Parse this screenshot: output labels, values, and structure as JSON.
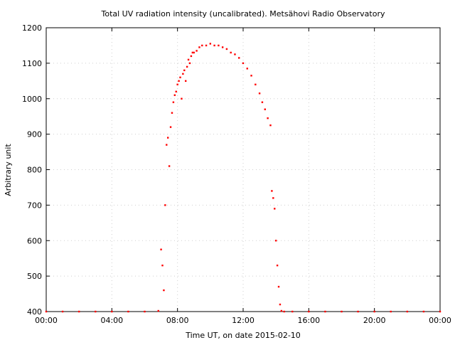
{
  "chart_data": {
    "type": "scatter",
    "title": "Total UV radiation intensity (uncalibrated). Metsähovi Radio Observatory",
    "xlabel": "Time UT, on date 2015-02-10",
    "ylabel": "Arbitrary unit",
    "xlim": [
      "00:00",
      "24:00"
    ],
    "ylim": [
      400,
      1200
    ],
    "grid": true,
    "x_ticks": [
      "00:00",
      "04:00",
      "08:00",
      "12:00",
      "16:00",
      "20:00",
      "00:00"
    ],
    "y_ticks": [
      "400",
      "500",
      "600",
      "700",
      "800",
      "900",
      "1000",
      "1100",
      "1200"
    ],
    "marker_color": "#ff0000",
    "series": [
      {
        "x": [
          "00:00",
          "01:00",
          "02:00",
          "03:00",
          "04:00",
          "05:00",
          "06:00",
          "06:50",
          "07:00",
          "07:05",
          "07:10",
          "07:15",
          "07:20",
          "07:25",
          "07:30",
          "07:35",
          "07:40",
          "07:45",
          "07:50",
          "07:55",
          "08:00",
          "08:05",
          "08:10",
          "08:15",
          "08:20",
          "08:25",
          "08:30",
          "08:35",
          "08:40",
          "08:45",
          "08:50",
          "08:55",
          "09:00",
          "09:10",
          "09:20",
          "09:30",
          "09:45",
          "10:00",
          "10:15",
          "10:30",
          "10:45",
          "11:00",
          "11:15",
          "11:30",
          "11:45",
          "12:00",
          "12:15",
          "12:30",
          "12:45",
          "13:00",
          "13:10",
          "13:20",
          "13:30",
          "13:40",
          "13:45",
          "13:50",
          "13:55",
          "14:00",
          "14:05",
          "14:10",
          "14:15",
          "14:20",
          "14:30",
          "15:00",
          "16:00",
          "17:00",
          "18:00",
          "19:00",
          "20:00",
          "21:00",
          "22:00",
          "23:00",
          "24:00"
        ],
        "y": [
          400,
          400,
          400,
          400,
          400,
          400,
          400,
          402,
          575,
          530,
          460,
          700,
          870,
          890,
          810,
          920,
          960,
          990,
          1010,
          1020,
          1040,
          1050,
          1060,
          1000,
          1070,
          1080,
          1050,
          1090,
          1110,
          1100,
          1120,
          1130,
          1130,
          1135,
          1145,
          1150,
          1150,
          1155,
          1150,
          1150,
          1145,
          1140,
          1130,
          1125,
          1115,
          1100,
          1085,
          1065,
          1040,
          1015,
          990,
          970,
          945,
          925,
          740,
          720,
          690,
          600,
          530,
          470,
          420,
          402,
          400,
          400,
          400,
          400,
          400,
          400,
          400,
          400,
          400,
          400,
          400
        ]
      }
    ]
  }
}
